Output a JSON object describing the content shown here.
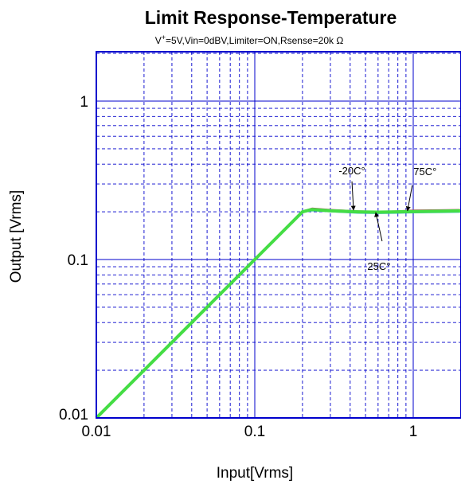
{
  "chart_data": {
    "type": "line",
    "title": "Limit Response-Temperature",
    "subtitle": {
      "prefix": "V",
      "sup": "+",
      "rest": "=5V,Vin=0dBV,Limiter=ON,Rsense=20k  Ω"
    },
    "xlabel": "Input[Vrms]",
    "ylabel": "Output [Vrms]",
    "x_scale": "log",
    "y_scale": "log",
    "xlim": [
      0.01,
      2
    ],
    "ylim": [
      0.01,
      2
    ],
    "x_ticks": [
      {
        "value": 0.01,
        "label": "0.01"
      },
      {
        "value": 0.1,
        "label": "0.1"
      },
      {
        "value": 1,
        "label": "1"
      }
    ],
    "y_ticks": [
      {
        "value": 0.01,
        "label": "0.01"
      },
      {
        "value": 0.1,
        "label": "0.1"
      },
      {
        "value": 1,
        "label": "1"
      }
    ],
    "grid": true,
    "series": [
      {
        "name": "-20C°",
        "color": "#cc3366",
        "x": [
          0.01,
          0.05,
          0.1,
          0.15,
          0.2,
          0.23,
          0.3,
          0.45,
          0.6,
          0.8,
          1.0,
          1.5,
          2.0
        ],
        "y": [
          0.01,
          0.05,
          0.1,
          0.15,
          0.2,
          0.209,
          0.205,
          0.201,
          0.199,
          0.201,
          0.203,
          0.204,
          0.205
        ]
      },
      {
        "name": "25C°",
        "color": "#33b8c8",
        "x": [
          0.01,
          0.05,
          0.1,
          0.15,
          0.2,
          0.23,
          0.3,
          0.45,
          0.6,
          0.8,
          1.0,
          1.5,
          2.0
        ],
        "y": [
          0.01,
          0.05,
          0.1,
          0.15,
          0.2,
          0.205,
          0.202,
          0.198,
          0.197,
          0.198,
          0.199,
          0.2,
          0.201
        ]
      },
      {
        "name": "75C°",
        "color": "#44dd44",
        "x": [
          0.01,
          0.05,
          0.1,
          0.15,
          0.2,
          0.23,
          0.3,
          0.45,
          0.6,
          0.8,
          1.0,
          1.5,
          2.0
        ],
        "y": [
          0.01,
          0.05,
          0.1,
          0.15,
          0.2,
          0.207,
          0.203,
          0.2,
          0.199,
          0.2,
          0.201,
          0.202,
          0.203
        ]
      }
    ],
    "annotations": [
      {
        "text": "-20C°",
        "x": 0.42,
        "y": 0.205
      },
      {
        "text": "75C°",
        "x": 0.92,
        "y": 0.203
      },
      {
        "text": "25C°",
        "x": 0.58,
        "y": 0.198
      }
    ],
    "colors": {
      "frame": "#0000cc",
      "grid": "#0000cc",
      "text": "#000000"
    }
  }
}
